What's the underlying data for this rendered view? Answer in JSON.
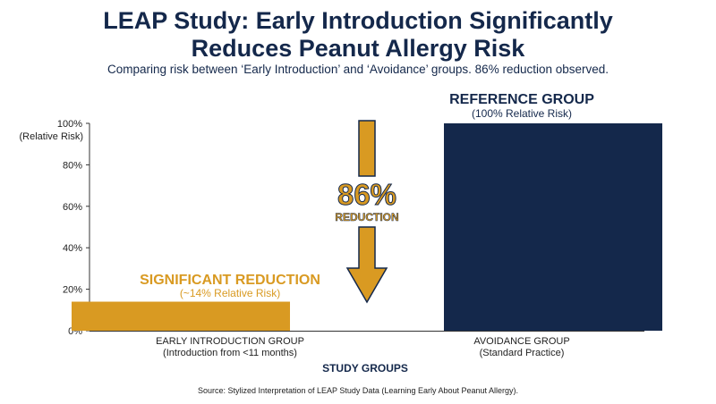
{
  "title_line1": "LEAP Study: Early Introduction Significantly",
  "title_line2": "Reduces Peanut Allergy Risk",
  "subtitle": "Comparing risk between ‘Early Introduction’ and ‘Avoidance’ groups. 86% reduction observed.",
  "source": "Source: Stylized Interpretation of LEAP Study Data (Learning Early About Peanut Allergy).",
  "colors": {
    "navy": "#14284b",
    "gold": "#d99a22",
    "text": "#222222"
  },
  "chart_data": {
    "type": "bar",
    "categories": [
      "EARLY INTRODUCTION GROUP",
      "AVOIDANCE GROUP"
    ],
    "category_sublabels": [
      "(Introduction from <11 months)",
      "(Standard Practice)"
    ],
    "values": [
      14,
      100
    ],
    "bar_colors": [
      "#d99a22",
      "#14284b"
    ],
    "xlabel": "STUDY GROUPS",
    "ylabel": "(Relative Risk)",
    "ylim": [
      0,
      100
    ],
    "yticks": [
      "0%",
      "20%",
      "40%",
      "60%",
      "80%",
      "100%"
    ],
    "grid": false,
    "annotations": {
      "early": {
        "title": "SIGNIFICANT REDUCTION",
        "subtitle": "(~14% Relative Risk)"
      },
      "avoidance": {
        "title": "REFERENCE GROUP",
        "subtitle": "(100% Relative Risk)"
      },
      "arrow": {
        "value": "86%",
        "label": "REDUCTION"
      }
    }
  }
}
